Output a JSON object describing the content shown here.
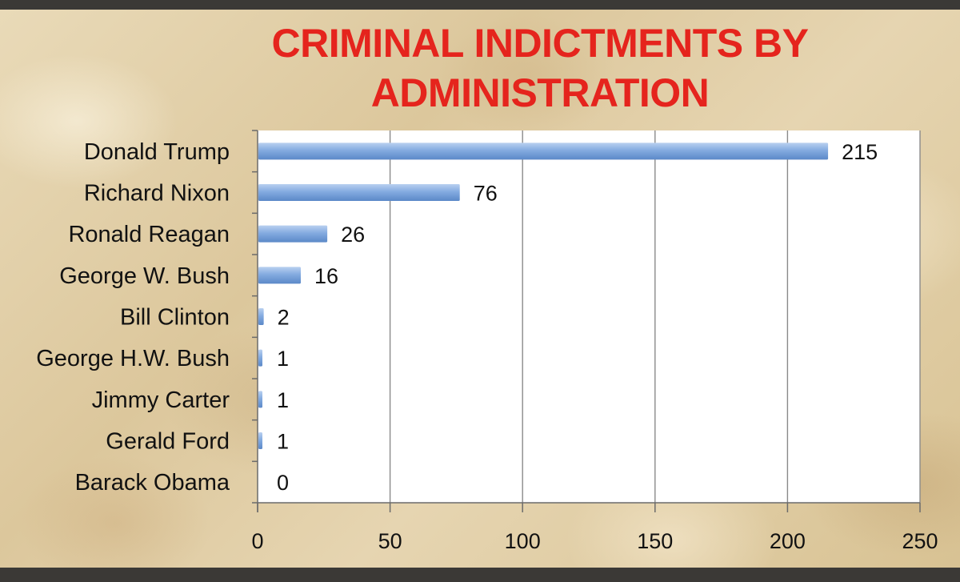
{
  "chart_data": {
    "type": "bar",
    "orientation": "horizontal",
    "title_lines": [
      "CRIMINAL INDICTMENTS BY",
      "ADMINISTRATION"
    ],
    "categories": [
      "Donald Trump",
      "Richard Nixon",
      "Ronald Reagan",
      "George W. Bush",
      "Bill Clinton",
      "George H.W. Bush",
      "Jimmy Carter",
      "Gerald Ford",
      "Barack Obama"
    ],
    "values": [
      215,
      76,
      26,
      16,
      2,
      1,
      1,
      1,
      0
    ],
    "xlim": [
      0,
      250
    ],
    "xticks": [
      0,
      50,
      100,
      150,
      200,
      250
    ],
    "grid": "vertical",
    "legend": "none",
    "colors": {
      "title": "#e5241d",
      "bar": "#7aa5dd",
      "plot_background": "#ffffff",
      "grid": "#8a8a8a"
    }
  }
}
